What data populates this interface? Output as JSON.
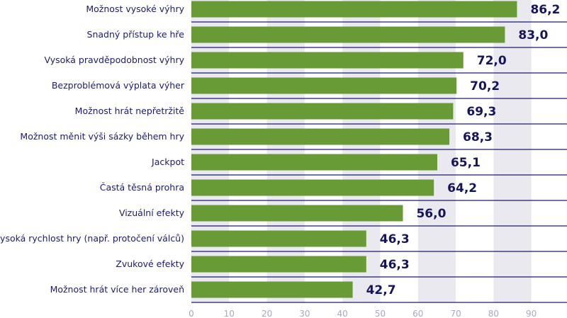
{
  "chart_data": {
    "type": "bar",
    "orientation": "horizontal",
    "categories": [
      "Možnost vysoké výhry",
      "Snadný přístup ke hře",
      "Vysoká pravděpodobnost výhry",
      "Bezproblémová výplata výher",
      "Možnost hrát nepřetržitě",
      "Možnost měnit výši sázky během hry",
      "Jackpot",
      "Častá těsná prohra",
      "Vizuální efekty",
      "Vysoká rychlost hry (např. protočení válců)",
      "Zvukové efekty",
      "Možnost hrát více her zároveň"
    ],
    "values": [
      86.2,
      83.0,
      72.0,
      70.2,
      69.3,
      68.3,
      65.1,
      64.2,
      56.0,
      46.3,
      46.3,
      42.7
    ],
    "value_labels": [
      "86,2",
      "83,0",
      "72,0",
      "70,2",
      "69,3",
      "68,3",
      "65,1",
      "64,2",
      "56,0",
      "46,3",
      "46,3",
      "42,7"
    ],
    "xlim": [
      0,
      100
    ],
    "xticks": [
      "0",
      "10",
      "20",
      "30",
      "40",
      "50",
      "60",
      "70",
      "80",
      "90"
    ],
    "grid": "alternating vertical bands",
    "colors": {
      "bar": "#689a35",
      "text": "#1b1b6b",
      "band": "#e9e9ef",
      "separator": "#1c1c6c"
    }
  }
}
